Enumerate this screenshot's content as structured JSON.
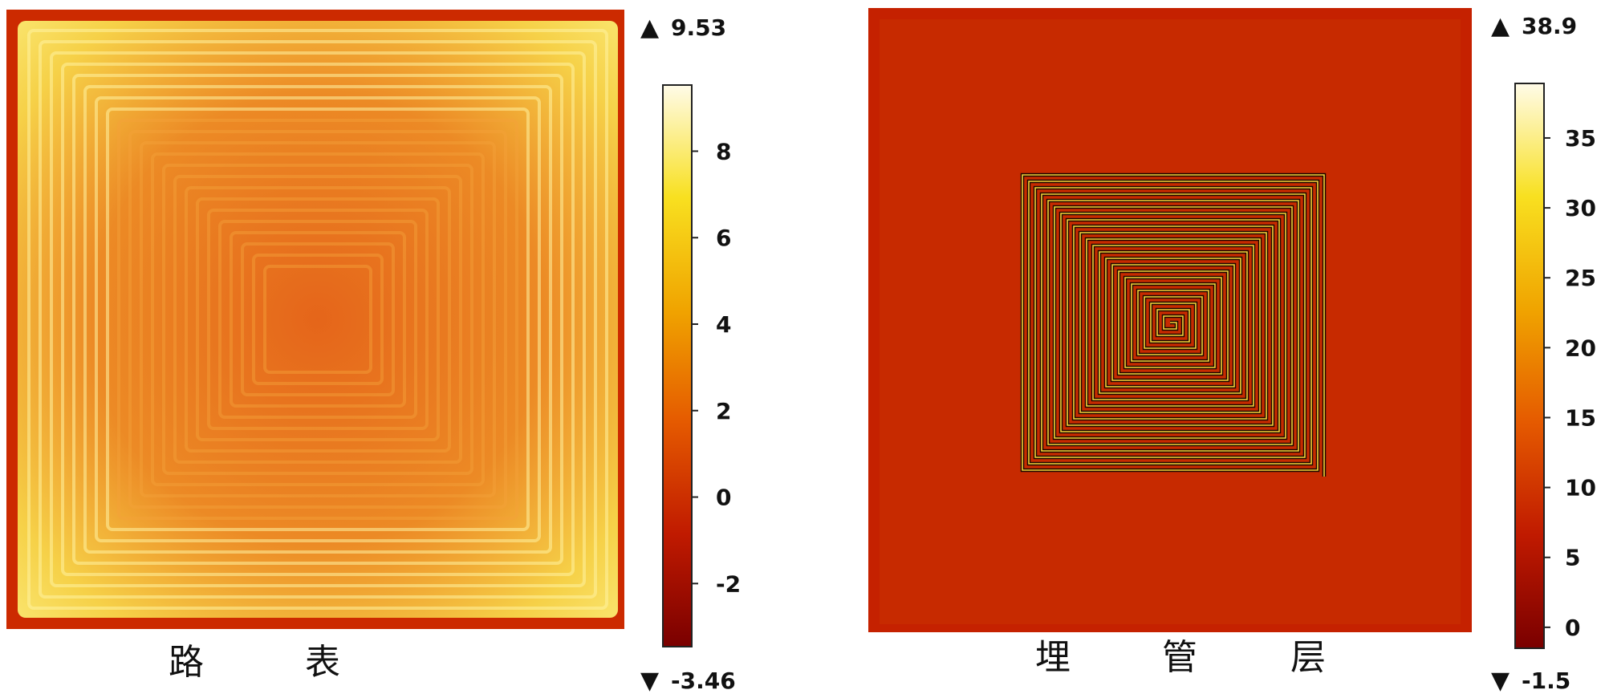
{
  "chart_data": [
    {
      "type": "heatmap",
      "caption": [
        "路",
        "表"
      ],
      "colorbar": {
        "max": "9.53",
        "min": "-3.46",
        "ticks": [
          8,
          6,
          4,
          2,
          0,
          -2
        ],
        "range": [
          -3.46,
          9.53
        ]
      },
      "pattern": "concentric-square"
    },
    {
      "type": "heatmap",
      "caption": [
        "埋",
        "管",
        "层"
      ],
      "colorbar": {
        "max": "38.9",
        "min": "-1.5",
        "ticks": [
          35,
          30,
          25,
          20,
          15,
          10,
          5,
          0
        ],
        "range": [
          -1.5,
          38.9
        ]
      },
      "pattern": "square-spiral"
    }
  ]
}
